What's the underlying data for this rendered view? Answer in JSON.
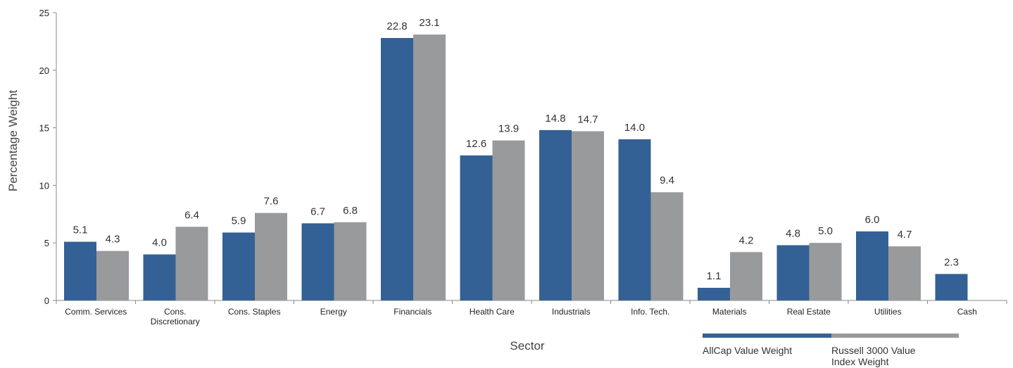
{
  "chart_data": {
    "type": "bar",
    "title": "",
    "xlabel": "Sector",
    "ylabel": "Percentage Weight",
    "ylim": [
      0,
      25
    ],
    "yticks": [
      "0",
      "5",
      "10",
      "15",
      "20",
      "25"
    ],
    "grid": false,
    "legend_position": "bottom-right",
    "categories": [
      [
        "Comm. Services"
      ],
      [
        "Cons.",
        "Discretionary"
      ],
      [
        "Cons. Staples"
      ],
      [
        "Energy"
      ],
      [
        "Financials"
      ],
      [
        "Health Care"
      ],
      [
        "Industrials"
      ],
      [
        "Info. Tech."
      ],
      [
        "Materials"
      ],
      [
        "Real Estate"
      ],
      [
        "Utilities"
      ],
      [
        "Cash"
      ]
    ],
    "series": [
      {
        "name": "AllCap Value Weight",
        "color": "#336195",
        "values": [
          5.1,
          4.0,
          5.9,
          6.7,
          22.8,
          12.6,
          14.8,
          14.0,
          1.1,
          4.8,
          6.0,
          2.3
        ],
        "labels": [
          "5.1",
          "4.0",
          "5.9",
          "6.7",
          "22.8",
          "12.6",
          "14.8",
          "14.0",
          "1.1",
          "4.8",
          "6.0",
          "2.3"
        ]
      },
      {
        "name_lines": [
          "Russell 3000 Value",
          "Index Weight"
        ],
        "color": "#999a9c",
        "values": [
          4.3,
          6.4,
          7.6,
          6.8,
          23.1,
          13.9,
          14.7,
          9.4,
          4.2,
          5.0,
          4.7,
          null
        ],
        "labels": [
          "4.3",
          "6.4",
          "7.6",
          "6.8",
          "23.1",
          "13.9",
          "14.7",
          "9.4",
          "4.2",
          "5.0",
          "4.7",
          ""
        ]
      }
    ]
  }
}
